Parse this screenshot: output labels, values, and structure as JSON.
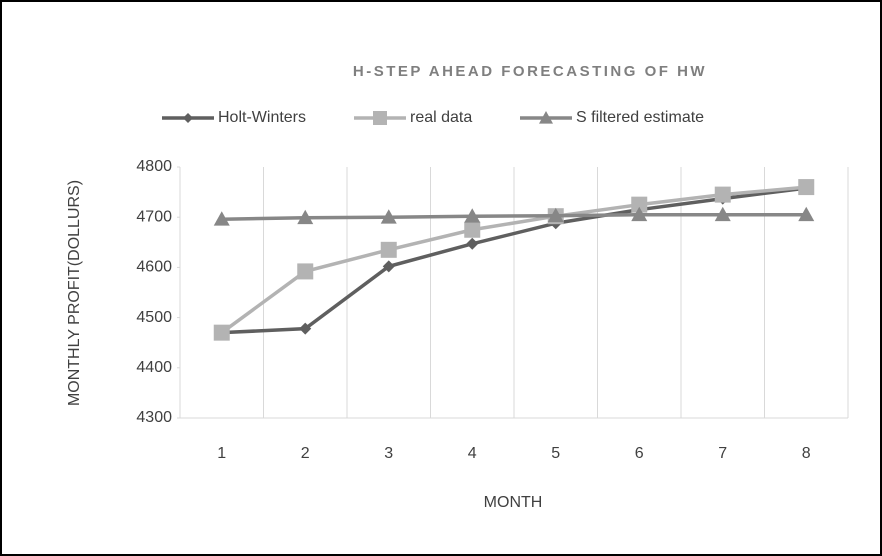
{
  "chart_data": {
    "type": "line",
    "title": "H-STEP AHEAD FORECASTING OF HW",
    "x_label": "MONTH",
    "y_label": "MONTHLY PROFIT(DOLLURS)",
    "categories": [
      "1",
      "2",
      "3",
      "4",
      "5",
      "6",
      "7",
      "8"
    ],
    "series": [
      {
        "name": "Holt-Winters",
        "color": "#5f5f5f",
        "marker": "diamond",
        "values": [
          4470,
          4478,
          4602,
          4647,
          4688,
          4715,
          4737,
          4758
        ]
      },
      {
        "name": "real data",
        "color": "#b3b3b3",
        "marker": "square",
        "values": [
          4470,
          4592,
          4635,
          4675,
          4702,
          4725,
          4745,
          4760
        ]
      },
      {
        "name": "S filtered estimate",
        "color": "#878787",
        "marker": "triangle",
        "values": [
          4696,
          4699,
          4700,
          4702,
          4703,
          4705,
          4705,
          4705
        ]
      }
    ],
    "ylim": [
      4300,
      4800
    ],
    "yticks": [
      4300,
      4400,
      4500,
      4600,
      4700,
      4800
    ],
    "grid": "vertical",
    "legend": "top"
  }
}
